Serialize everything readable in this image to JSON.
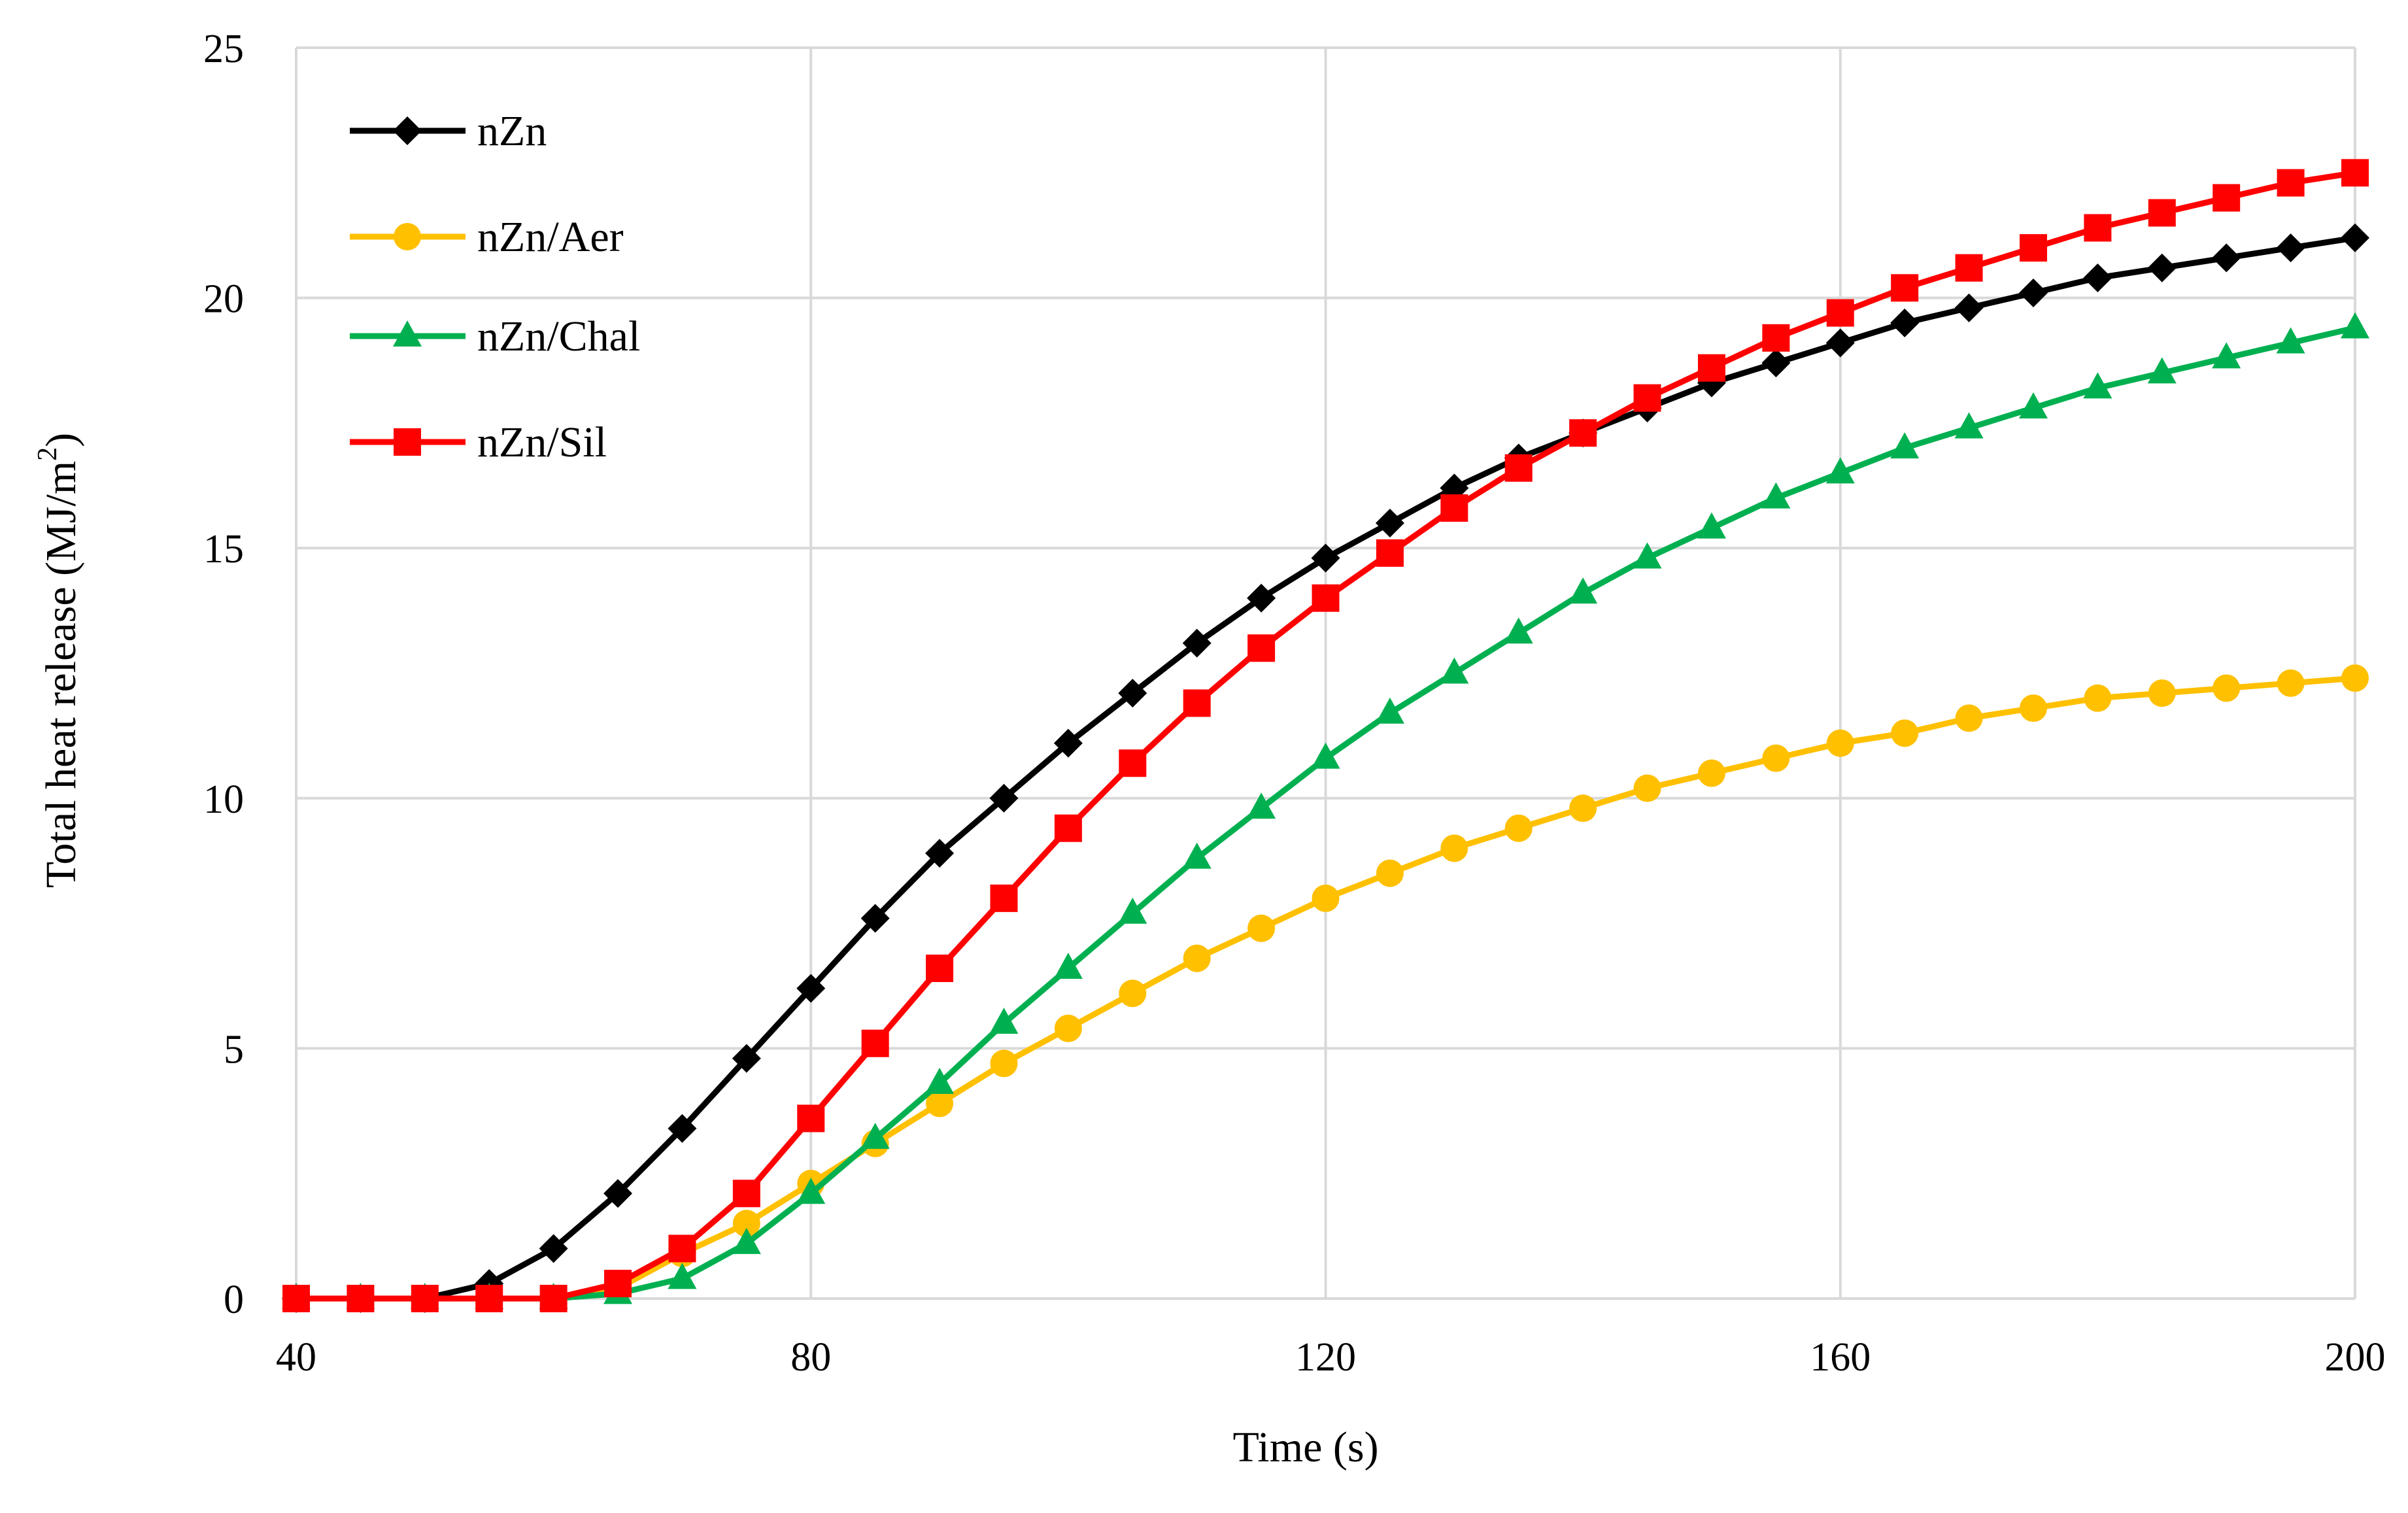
{
  "chart_data": {
    "type": "line",
    "title": "",
    "xlabel": "Time (s)",
    "ylabel": "Total heat release (MJ/m²)",
    "ylabel_main": "Total heat release (MJ/m",
    "ylabel_sup": "2",
    "ylabel_close": ")",
    "xlim": [
      40,
      200
    ],
    "ylim": [
      0,
      25
    ],
    "xticks": [
      40,
      80,
      120,
      160,
      200
    ],
    "yticks": [
      0,
      5,
      10,
      15,
      20,
      25
    ],
    "xtick_labels": [
      "40",
      "80",
      "120",
      "160",
      "200"
    ],
    "ytick_labels": [
      "0",
      "5",
      "10",
      "15",
      "20",
      "25"
    ],
    "grid": true,
    "legend_position": "top-left",
    "x": [
      40,
      45,
      50,
      55,
      60,
      65,
      70,
      75,
      80,
      85,
      90,
      95,
      100,
      105,
      110,
      115,
      120,
      125,
      130,
      135,
      140,
      145,
      150,
      155,
      160,
      165,
      170,
      175,
      180,
      185,
      190,
      195,
      200
    ],
    "series": [
      {
        "name": "nZn",
        "color": "#000000",
        "marker": "diamond",
        "values": [
          0,
          0,
          0,
          0.3,
          1.0,
          2.1,
          3.4,
          4.8,
          6.2,
          7.6,
          8.9,
          10.0,
          11.1,
          12.1,
          13.1,
          14.0,
          14.8,
          15.5,
          16.2,
          16.8,
          17.3,
          17.8,
          18.3,
          18.7,
          19.1,
          19.5,
          19.8,
          20.1,
          20.4,
          20.6,
          20.8,
          21.0,
          21.2
        ]
      },
      {
        "name": "nZn/Aer",
        "color": "#ffc000",
        "marker": "circle",
        "values": [
          0,
          0,
          0,
          0,
          0,
          0.2,
          0.9,
          1.5,
          2.3,
          3.1,
          3.9,
          4.7,
          5.4,
          6.1,
          6.8,
          7.4,
          8.0,
          8.5,
          9.0,
          9.4,
          9.8,
          10.2,
          10.5,
          10.8,
          11.1,
          11.3,
          11.6,
          11.8,
          12.0,
          12.1,
          12.2,
          12.3,
          12.4
        ]
      },
      {
        "name": "nZn/Chal",
        "color": "#00b050",
        "marker": "triangle",
        "values": [
          0,
          0,
          0,
          0,
          0,
          0.1,
          0.4,
          1.1,
          2.1,
          3.2,
          4.3,
          5.5,
          6.6,
          7.7,
          8.8,
          9.8,
          10.8,
          11.7,
          12.5,
          13.3,
          14.1,
          14.8,
          15.4,
          16.0,
          16.5,
          17.0,
          17.4,
          17.8,
          18.2,
          18.5,
          18.8,
          19.1,
          19.4
        ]
      },
      {
        "name": "nZn/Sil",
        "color": "#ff0000",
        "marker": "square",
        "values": [
          0,
          0,
          0,
          0,
          0,
          0.3,
          1.0,
          2.1,
          3.6,
          5.1,
          6.6,
          8.0,
          9.4,
          10.7,
          11.9,
          13.0,
          14.0,
          14.9,
          15.8,
          16.6,
          17.3,
          18.0,
          18.6,
          19.2,
          19.7,
          20.2,
          20.6,
          21.0,
          21.4,
          21.7,
          22.0,
          22.3,
          22.5
        ]
      }
    ]
  }
}
